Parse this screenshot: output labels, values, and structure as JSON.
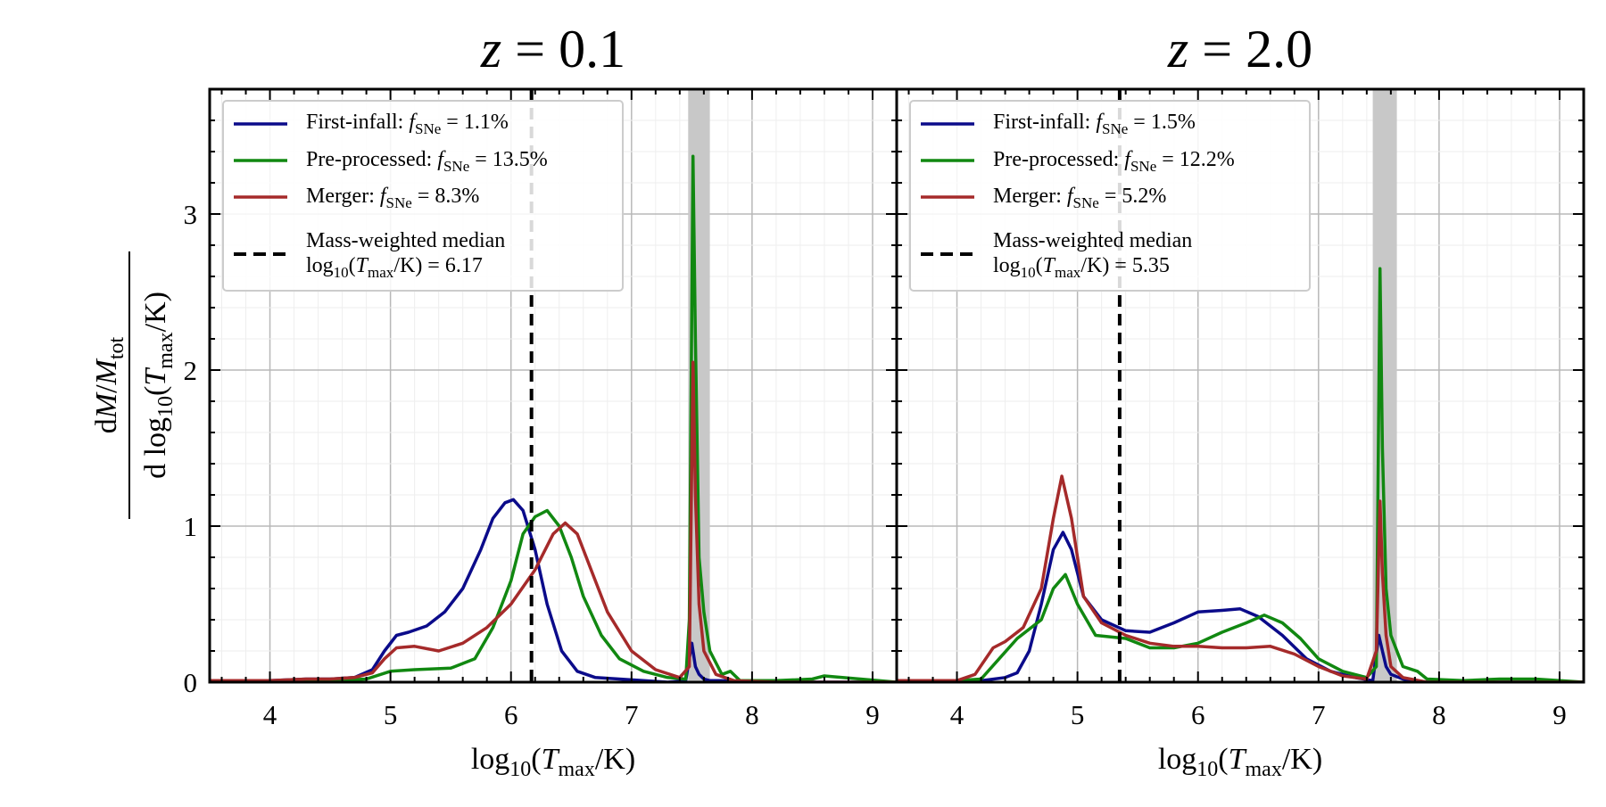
{
  "figure": {
    "ylabel": {
      "num_d": "d",
      "num_M": "M",
      "num_slash": "/",
      "num_Mtot": "M",
      "num_tot_sub": "tot",
      "den_prefix": "d log",
      "den_sub": "10",
      "den_open": "(",
      "den_T": "T",
      "den_max_sub": "max",
      "den_close": "/K)"
    }
  },
  "chart_data": [
    {
      "type": "line",
      "title_var": "z",
      "title_eq": " = 0.1",
      "xlabel": {
        "prefix": "log",
        "sub": "10",
        "open": "(",
        "T": "T",
        "tsub": "max",
        "close": "/K)"
      },
      "xlim": [
        3.5,
        9.2
      ],
      "ylim": [
        0,
        3.8
      ],
      "xticks": [
        "4",
        "5",
        "6",
        "7",
        "8",
        "9"
      ],
      "yticks": [
        "0",
        "1",
        "2",
        "3"
      ],
      "grid": true,
      "legend_position": "top-left",
      "shaded_band": [
        7.47,
        7.65
      ],
      "median": {
        "value": 6.17,
        "label_line1": "Mass-weighted median",
        "label_prefix": "log",
        "label_sub": "10",
        "label_T": "T",
        "label_tsub": "max",
        "label_suffix": "/K) = 6.17"
      },
      "series": [
        {
          "name": "First-infall",
          "color": "#0b0b8a",
          "f_label": "f",
          "f_sub": "SNe",
          "f_value": " = 1.1%",
          "x": [
            3.5,
            4.0,
            4.3,
            4.5,
            4.7,
            4.85,
            4.95,
            5.05,
            5.15,
            5.3,
            5.45,
            5.6,
            5.75,
            5.85,
            5.95,
            6.02,
            6.1,
            6.2,
            6.3,
            6.42,
            6.55,
            6.7,
            6.9,
            7.1,
            7.3,
            7.45,
            7.5,
            7.53,
            7.56,
            7.6,
            7.65,
            7.75,
            8.0,
            8.5,
            9.2
          ],
          "y": [
            0.01,
            0.01,
            0.02,
            0.02,
            0.03,
            0.08,
            0.2,
            0.3,
            0.32,
            0.36,
            0.45,
            0.6,
            0.85,
            1.05,
            1.15,
            1.17,
            1.1,
            0.85,
            0.5,
            0.2,
            0.07,
            0.03,
            0.02,
            0.01,
            0.0,
            0.01,
            0.25,
            0.1,
            0.05,
            0.02,
            0.01,
            0.01,
            0.0,
            0.0,
            0.0
          ]
        },
        {
          "name": "Pre-processed",
          "color": "#118811",
          "f_label": "f",
          "f_sub": "SNe",
          "f_value": " = 13.5%",
          "x": [
            3.5,
            4.0,
            4.5,
            4.8,
            5.0,
            5.2,
            5.5,
            5.7,
            5.85,
            6.0,
            6.1,
            6.2,
            6.3,
            6.4,
            6.5,
            6.6,
            6.75,
            6.9,
            7.1,
            7.3,
            7.45,
            7.48,
            7.51,
            7.53,
            7.56,
            7.6,
            7.65,
            7.75,
            7.82,
            7.9,
            8.2,
            8.5,
            8.6,
            9.2
          ],
          "y": [
            0.01,
            0.01,
            0.01,
            0.02,
            0.07,
            0.08,
            0.09,
            0.15,
            0.35,
            0.65,
            0.95,
            1.06,
            1.1,
            1.0,
            0.8,
            0.55,
            0.3,
            0.15,
            0.07,
            0.03,
            0.02,
            0.4,
            3.37,
            2.2,
            0.8,
            0.45,
            0.2,
            0.05,
            0.07,
            0.01,
            0.01,
            0.02,
            0.04,
            0.0
          ]
        },
        {
          "name": "Merger",
          "color": "#a52a2a",
          "f_label": "f",
          "f_sub": "SNe",
          "f_value": " = 8.3%",
          "x": [
            3.5,
            4.0,
            4.3,
            4.5,
            4.7,
            4.85,
            4.95,
            5.05,
            5.2,
            5.4,
            5.6,
            5.8,
            6.0,
            6.2,
            6.35,
            6.45,
            6.55,
            6.65,
            6.8,
            7.0,
            7.2,
            7.4,
            7.48,
            7.51,
            7.53,
            7.56,
            7.6,
            7.7,
            7.85,
            8.2,
            9.2
          ],
          "y": [
            0.01,
            0.01,
            0.02,
            0.02,
            0.03,
            0.06,
            0.15,
            0.22,
            0.23,
            0.2,
            0.25,
            0.35,
            0.5,
            0.72,
            0.95,
            1.02,
            0.95,
            0.75,
            0.45,
            0.2,
            0.08,
            0.03,
            0.1,
            2.05,
            1.2,
            0.5,
            0.2,
            0.05,
            0.01,
            0.0,
            0.0
          ]
        }
      ]
    },
    {
      "type": "line",
      "title_var": "z",
      "title_eq": " = 2.0",
      "xlabel": {
        "prefix": "log",
        "sub": "10",
        "open": "(",
        "T": "T",
        "tsub": "max",
        "close": "/K)"
      },
      "xlim": [
        3.5,
        9.2
      ],
      "ylim": [
        0,
        3.8
      ],
      "xticks": [
        "4",
        "5",
        "6",
        "7",
        "8",
        "9"
      ],
      "yticks": [
        "0",
        "1",
        "2",
        "3"
      ],
      "grid": true,
      "legend_position": "top-left",
      "shaded_band": [
        7.45,
        7.65
      ],
      "median": {
        "value": 5.35,
        "label_line1": "Mass-weighted median",
        "label_prefix": "log",
        "label_sub": "10",
        "label_T": "T",
        "label_tsub": "max",
        "label_suffix": "/K) = 5.35"
      },
      "series": [
        {
          "name": "First-infall",
          "color": "#0b0b8a",
          "f_label": "f",
          "f_sub": "SNe",
          "f_value": " = 1.5%",
          "x": [
            3.5,
            4.0,
            4.2,
            4.4,
            4.5,
            4.6,
            4.7,
            4.8,
            4.88,
            4.95,
            5.05,
            5.2,
            5.4,
            5.6,
            5.8,
            6.0,
            6.2,
            6.35,
            6.5,
            6.7,
            6.9,
            7.1,
            7.3,
            7.45,
            7.5,
            7.53,
            7.56,
            7.6,
            7.7,
            7.9,
            8.2,
            9.2
          ],
          "y": [
            0.01,
            0.01,
            0.01,
            0.03,
            0.06,
            0.2,
            0.5,
            0.85,
            0.96,
            0.85,
            0.55,
            0.4,
            0.33,
            0.32,
            0.38,
            0.45,
            0.46,
            0.47,
            0.42,
            0.3,
            0.15,
            0.07,
            0.03,
            0.01,
            0.3,
            0.2,
            0.1,
            0.05,
            0.02,
            0.0,
            0.0,
            0.0
          ]
        },
        {
          "name": "Pre-processed",
          "color": "#118811",
          "f_label": "f",
          "f_sub": "SNe",
          "f_value": " = 12.2%",
          "x": [
            3.5,
            4.0,
            4.2,
            4.35,
            4.5,
            4.7,
            4.8,
            4.9,
            5.0,
            5.15,
            5.4,
            5.6,
            5.8,
            6.0,
            6.2,
            6.4,
            6.55,
            6.7,
            6.85,
            7.0,
            7.2,
            7.4,
            7.48,
            7.51,
            7.53,
            7.56,
            7.6,
            7.7,
            7.82,
            7.9,
            8.2,
            8.5,
            8.8,
            9.2
          ],
          "y": [
            0.01,
            0.01,
            0.02,
            0.15,
            0.28,
            0.4,
            0.6,
            0.69,
            0.5,
            0.3,
            0.28,
            0.22,
            0.22,
            0.25,
            0.32,
            0.38,
            0.43,
            0.38,
            0.28,
            0.15,
            0.07,
            0.03,
            0.1,
            2.65,
            1.5,
            0.6,
            0.3,
            0.1,
            0.07,
            0.02,
            0.01,
            0.02,
            0.02,
            0.0
          ]
        },
        {
          "name": "Merger",
          "color": "#a52a2a",
          "f_label": "f",
          "f_sub": "SNe",
          "f_value": " = 5.2%",
          "x": [
            3.5,
            4.0,
            4.15,
            4.3,
            4.4,
            4.55,
            4.7,
            4.8,
            4.87,
            4.95,
            5.05,
            5.2,
            5.4,
            5.6,
            5.8,
            6.0,
            6.2,
            6.4,
            6.6,
            6.8,
            7.0,
            7.2,
            7.4,
            7.48,
            7.51,
            7.53,
            7.56,
            7.6,
            7.7,
            7.9,
            9.2
          ],
          "y": [
            0.01,
            0.01,
            0.05,
            0.22,
            0.26,
            0.35,
            0.6,
            1.05,
            1.32,
            1.05,
            0.55,
            0.38,
            0.3,
            0.25,
            0.23,
            0.23,
            0.22,
            0.22,
            0.23,
            0.18,
            0.1,
            0.04,
            0.02,
            0.2,
            1.16,
            0.7,
            0.3,
            0.1,
            0.03,
            0.0,
            0.0
          ]
        }
      ]
    }
  ]
}
